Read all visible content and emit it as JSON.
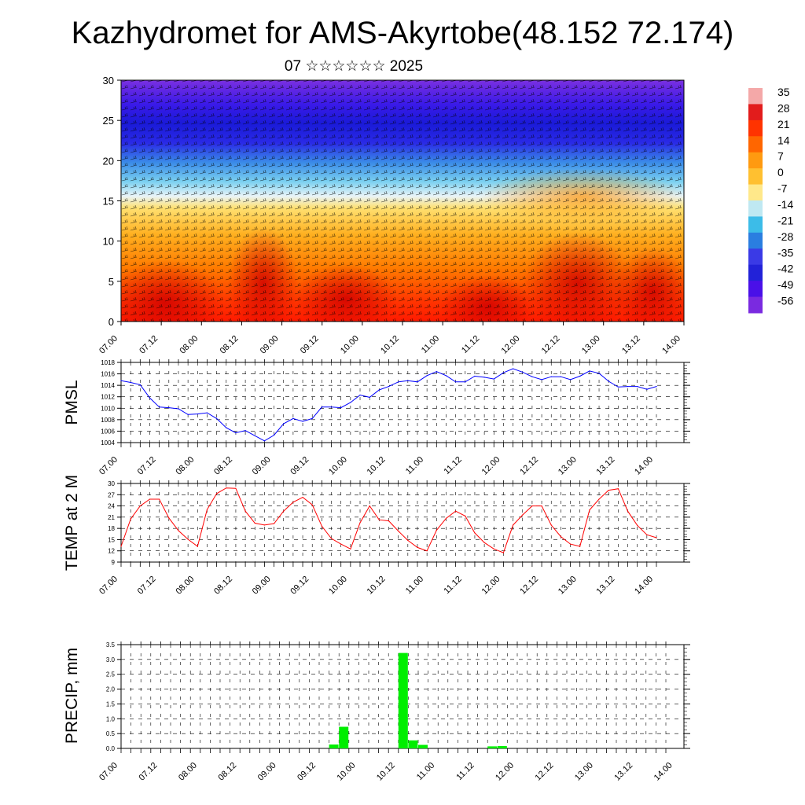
{
  "title": "Kazhydromet for AMS-Akyrtobe(48.152 72.174)",
  "subtitle": "07 ☆☆☆☆☆☆ 2025",
  "time_ticks": [
    "07.00",
    "07.12",
    "08.00",
    "08.12",
    "09.00",
    "09.12",
    "10.00",
    "10.12",
    "11.00",
    "11.12",
    "12.00",
    "12.12",
    "13.00",
    "13.12",
    "14.00"
  ],
  "colorbar": {
    "labels": [
      "35",
      "28",
      "21",
      "14",
      "7",
      "0",
      "-7",
      "-14",
      "-21",
      "-28",
      "-35",
      "-42",
      "-49",
      "-56"
    ],
    "colors": [
      "#f4a8a8",
      "#e21c1c",
      "#ff3300",
      "#ff6600",
      "#ff9a10",
      "#ffc030",
      "#ffe88a",
      "#bfe8f2",
      "#3cbce8",
      "#2a7ee0",
      "#3a3ae6",
      "#2222d8",
      "#4a10e8",
      "#7a2ae0"
    ]
  },
  "chart_data": [
    {
      "type": "heatmap",
      "name": "upper-air temperature and wind cross-section",
      "ylim": [
        0,
        30
      ],
      "yticks": [
        "0",
        "5",
        "10",
        "15",
        "20",
        "25",
        "30"
      ],
      "x": [
        "07.00",
        "07.12",
        "08.00",
        "08.12",
        "09.00",
        "09.12",
        "10.00",
        "10.12",
        "11.00",
        "11.12",
        "12.00",
        "12.12",
        "13.00",
        "13.12",
        "14.00"
      ],
      "value_range": [
        -56,
        35
      ],
      "colorbar_labels": [
        "35",
        "28",
        "21",
        "14",
        "7",
        "0",
        "-7",
        "-14",
        "-21",
        "-28",
        "-35",
        "-42",
        "-49",
        "-56"
      ]
    },
    {
      "type": "line",
      "ylabel": "PMSL",
      "ylim": [
        1004,
        1018
      ],
      "yticks": [
        "1004",
        "1006",
        "1008",
        "1010",
        "1012",
        "1014",
        "1016",
        "1018"
      ],
      "color": "#0000ff",
      "x_start": "07.00",
      "x_step_hours": 3,
      "values": [
        1014.8,
        1014.5,
        1014.1,
        1011.8,
        1010.2,
        1010.1,
        1009.9,
        1008.9,
        1009.0,
        1009.2,
        1008.2,
        1006.6,
        1005.7,
        1006.1,
        1005.2,
        1004.3,
        1005.3,
        1007.3,
        1008.2,
        1007.7,
        1008.2,
        1010.2,
        1010.2,
        1010.1,
        1011.0,
        1012.3,
        1011.9,
        1013.2,
        1013.8,
        1014.6,
        1014.8,
        1014.6,
        1015.7,
        1016.4,
        1015.7,
        1014.6,
        1014.6,
        1015.6,
        1015.4,
        1015.1,
        1016.2,
        1016.9,
        1016.3,
        1015.5,
        1015.0,
        1015.5,
        1015.5,
        1015.0,
        1015.6,
        1016.5,
        1016.1,
        1014.7,
        1013.7,
        1013.8,
        1013.8,
        1013.3,
        1013.8
      ]
    },
    {
      "type": "line",
      "ylabel": "TEMP at 2 M",
      "ylim": [
        9,
        30
      ],
      "yticks": [
        "9",
        "12",
        "15",
        "18",
        "21",
        "24",
        "27",
        "30"
      ],
      "color": "#ff0000",
      "x_start": "07.00",
      "x_step_hours": 3,
      "values": [
        13.2,
        20.5,
        24.0,
        25.8,
        25.8,
        20.8,
        17.4,
        15.1,
        13.2,
        23.0,
        27.3,
        28.8,
        28.7,
        22.6,
        19.4,
        18.9,
        19.3,
        22.6,
        25.0,
        26.3,
        24.3,
        18.6,
        15.3,
        13.8,
        12.5,
        19.5,
        24.0,
        20.3,
        20.0,
        17.3,
        14.8,
        12.9,
        12.0,
        17.5,
        20.7,
        22.6,
        21.3,
        16.8,
        14.2,
        12.5,
        11.5,
        18.9,
        21.6,
        24.0,
        24.0,
        18.9,
        15.8,
        13.8,
        13.2,
        22.9,
        25.8,
        28.2,
        28.6,
        22.6,
        18.8,
        16.3,
        15.5
      ]
    },
    {
      "type": "bar",
      "ylabel": "PRECIP, mm",
      "ylim": [
        0,
        3.5
      ],
      "yticks": [
        "0.0",
        "0.5",
        "1.0",
        "1.5",
        "2.0",
        "2.5",
        "3.0",
        "3.5"
      ],
      "color": "#00ee00",
      "x_start": "07.00",
      "x_step_hours": 3,
      "values": [
        0,
        0,
        0,
        0,
        0,
        0,
        0,
        0,
        0,
        0,
        0,
        0,
        0,
        0,
        0,
        0,
        0,
        0,
        0,
        0,
        0,
        0.13,
        0.73,
        0,
        0,
        0,
        0,
        0,
        3.22,
        0.27,
        0.12,
        0,
        0,
        0,
        0,
        0,
        0,
        0.07,
        0.08,
        0,
        0,
        0,
        0,
        0,
        0,
        0,
        0,
        0,
        0,
        0,
        0,
        0,
        0,
        0,
        0,
        0
      ]
    }
  ]
}
